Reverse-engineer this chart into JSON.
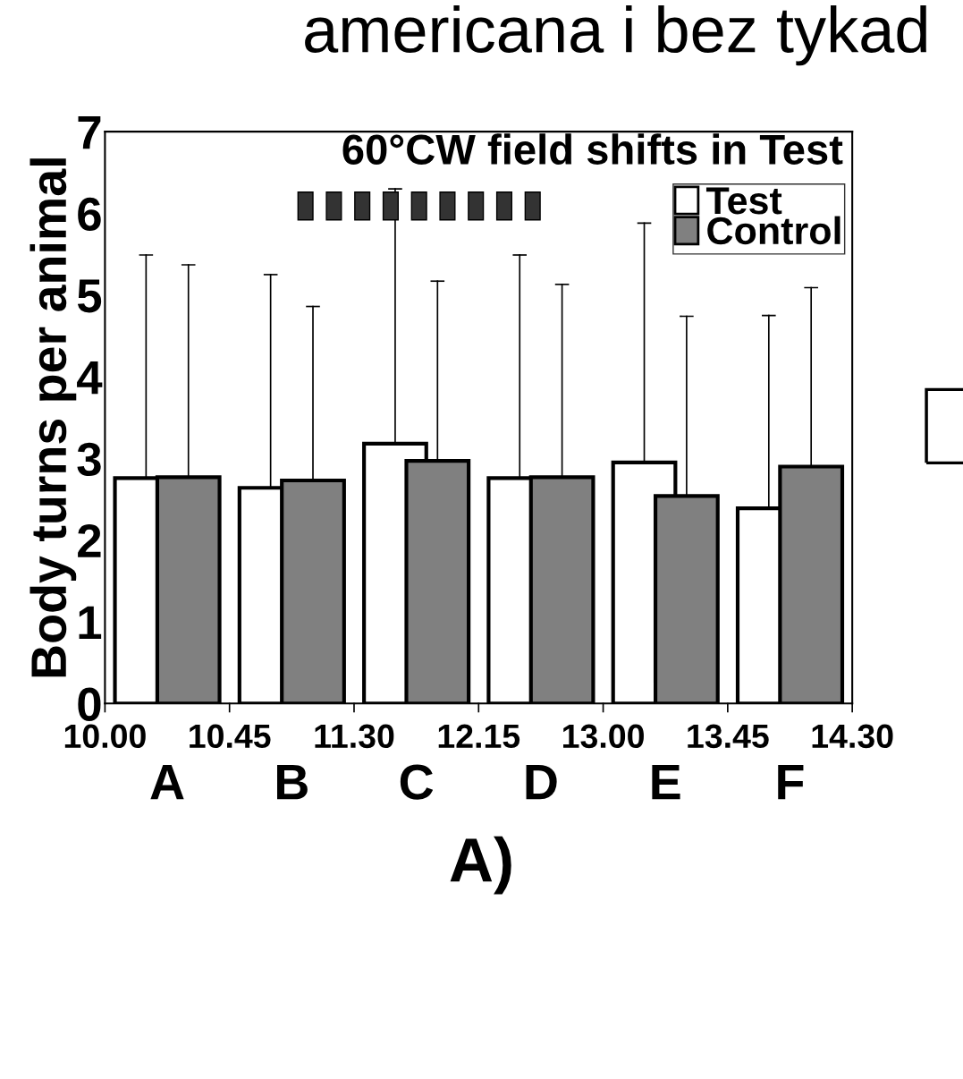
{
  "chart_data": {
    "type": "bar",
    "title": "60°CW field shifts in Test",
    "ylabel": "Body turns per animal",
    "categories": [
      "A",
      "B",
      "C",
      "D",
      "E",
      "F"
    ],
    "series": [
      {
        "name": "Test",
        "color": "#ffffff",
        "values": [
          2.76,
          2.64,
          3.18,
          2.76,
          2.95,
          2.39
        ],
        "errors": [
          [
            2.76,
            5.49
          ],
          [
            2.64,
            5.25
          ],
          [
            3.18,
            6.3
          ],
          [
            2.76,
            5.49
          ],
          [
            2.95,
            5.88
          ],
          [
            2.39,
            4.75
          ]
        ]
      },
      {
        "name": "Control",
        "color": "#808080",
        "values": [
          2.77,
          2.73,
          2.97,
          2.77,
          2.54,
          2.9
        ],
        "errors": [
          [
            2.77,
            5.37
          ],
          [
            2.73,
            4.86
          ],
          [
            2.97,
            5.17
          ],
          [
            2.77,
            5.13
          ],
          [
            2.54,
            4.74
          ],
          [
            2.9,
            5.09
          ]
        ]
      }
    ],
    "ylim": [
      0,
      7
    ],
    "yticks": [
      0,
      1,
      2,
      3,
      4,
      5,
      6,
      7
    ],
    "grid": false,
    "legend": "top right",
    "annotations": [
      "10.00",
      "10.45",
      "11.30",
      "12.15",
      "13.00",
      "13.45",
      "14.30",
      "A)",
      "americana i bez tykad"
    ]
  }
}
